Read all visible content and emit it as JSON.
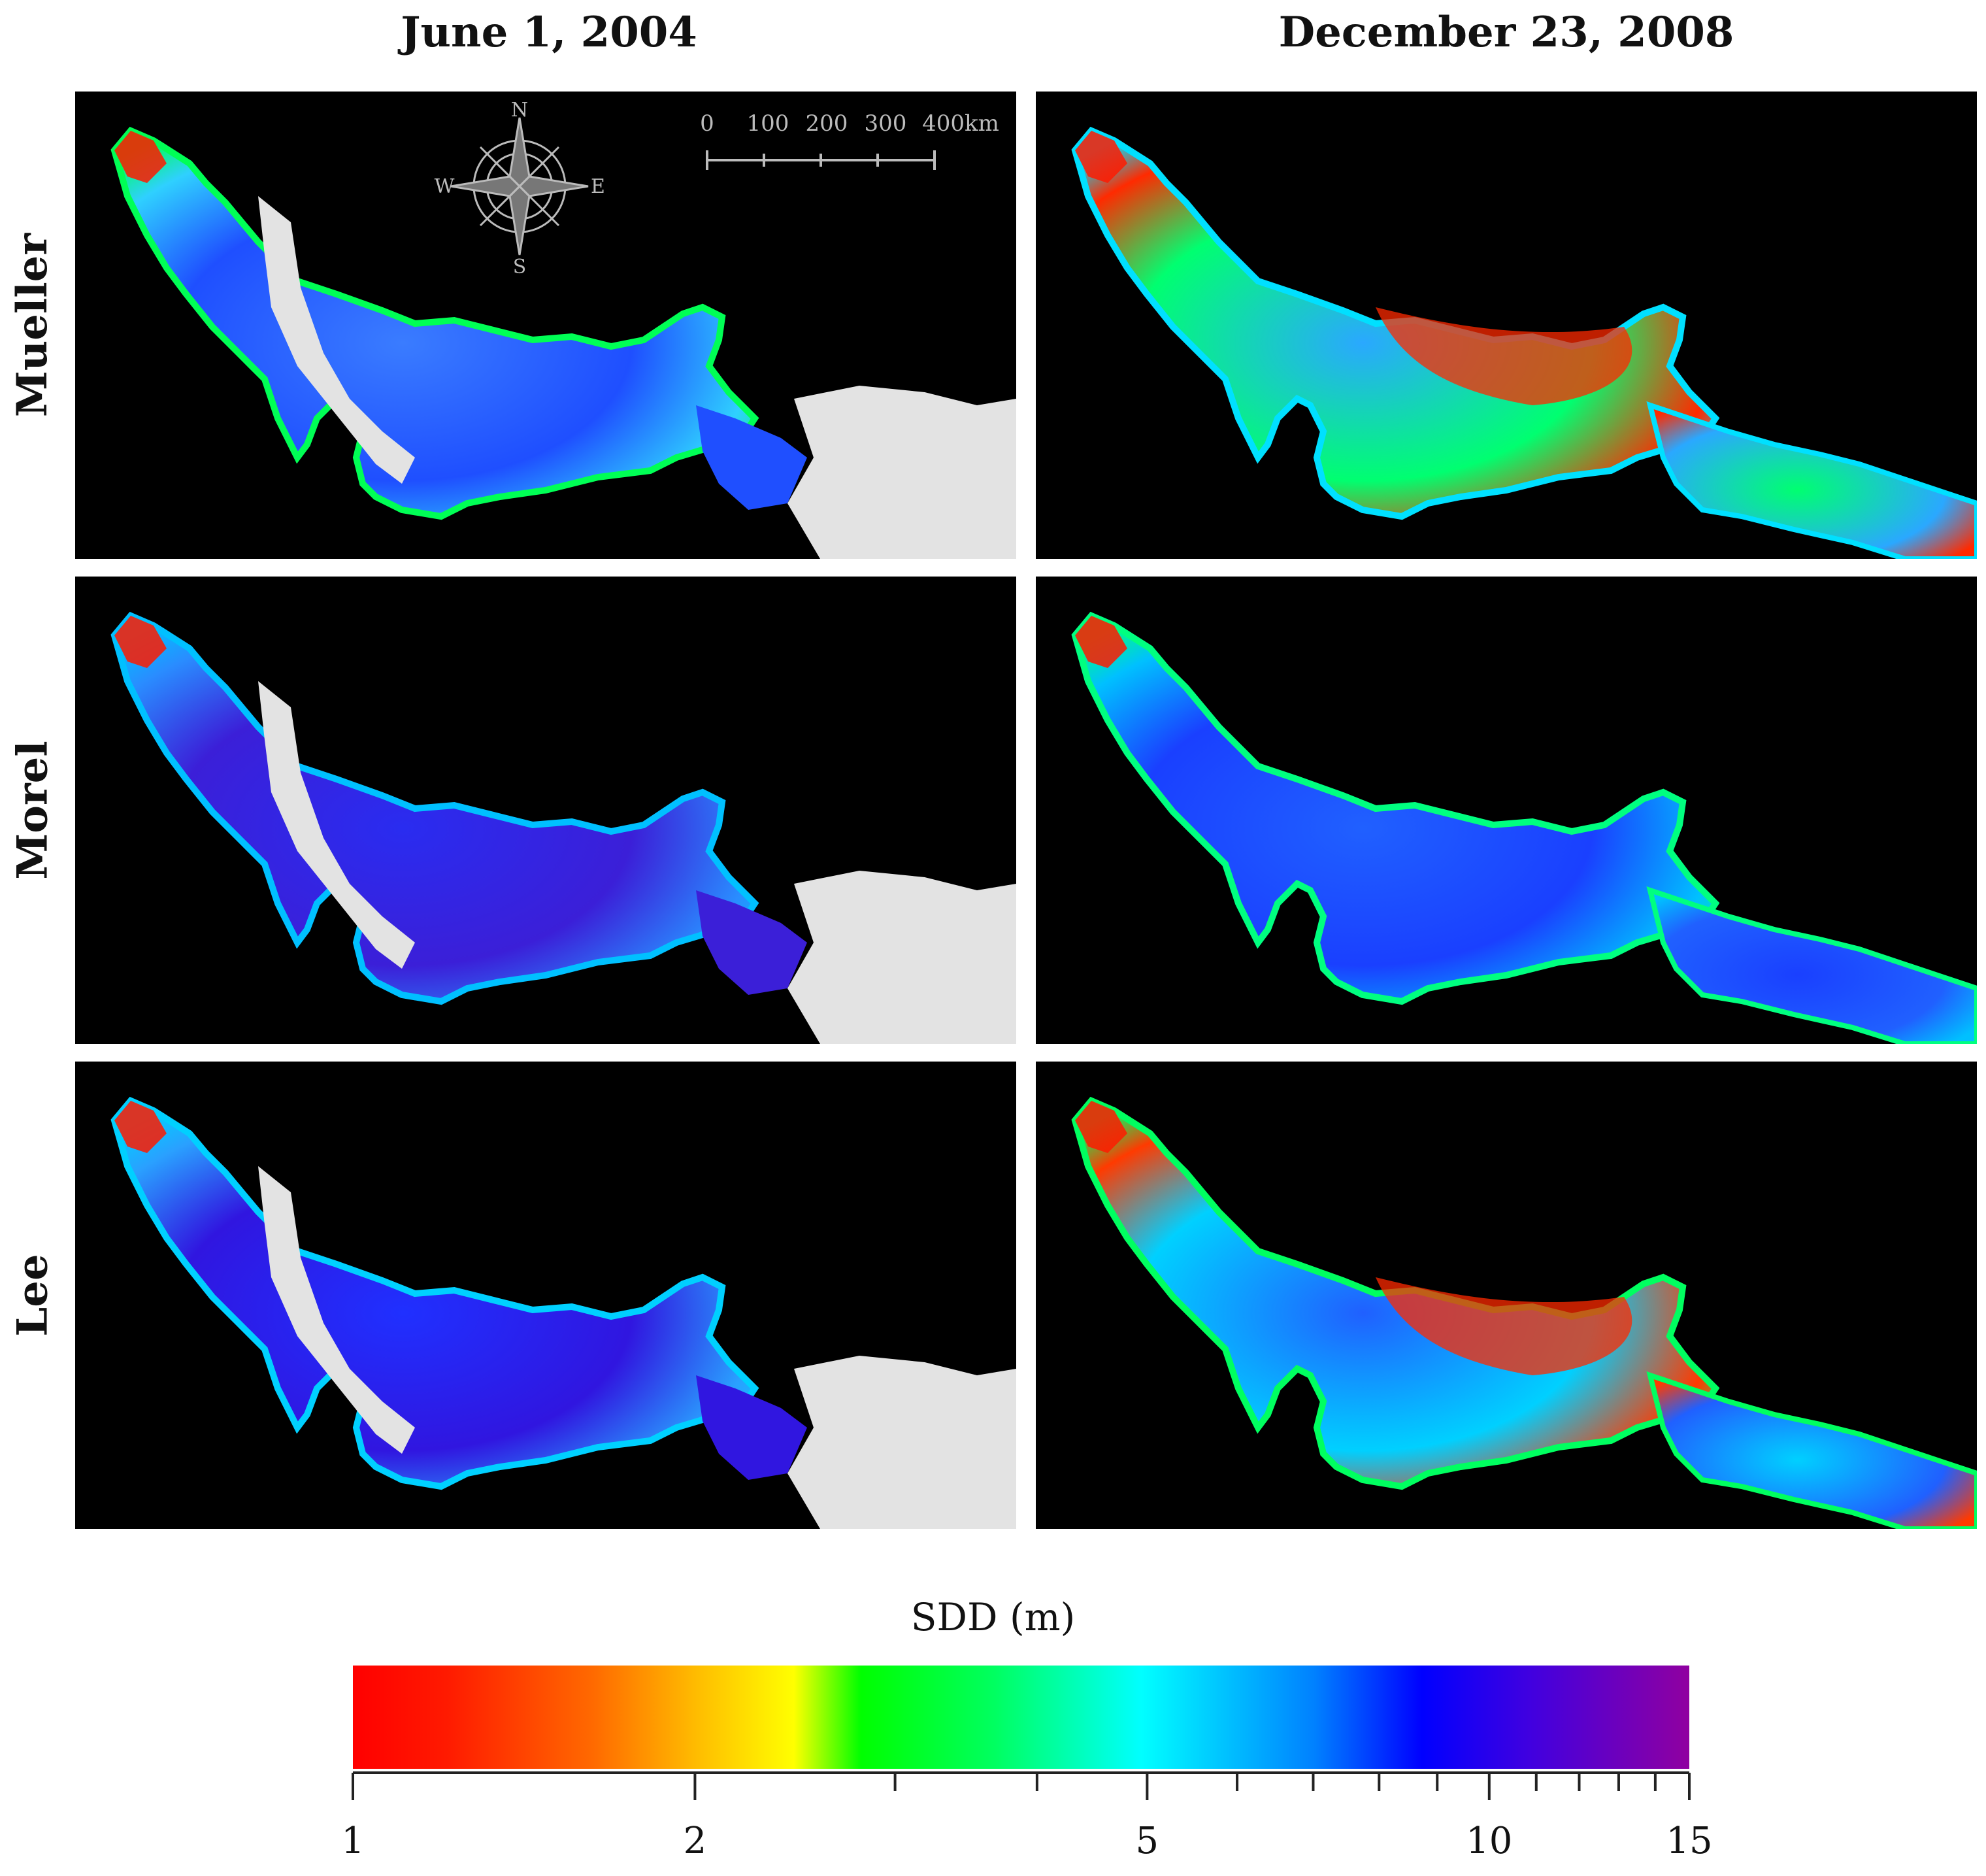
{
  "columns": [
    {
      "title": "June 1, 2004"
    },
    {
      "title": "December 23, 2008"
    }
  ],
  "rows": [
    {
      "label": "Mueller"
    },
    {
      "label": "Morel"
    },
    {
      "label": "Lee"
    }
  ],
  "map_overlay": {
    "compass": {
      "n": "N",
      "s": "S",
      "e": "E",
      "w": "W"
    },
    "scale_bar": {
      "labels": [
        "0",
        "100",
        "200",
        "300",
        "400km"
      ]
    }
  },
  "legend": {
    "title": "SDD (m)",
    "scale": "log",
    "range": [
      1,
      15
    ],
    "tick_labels": [
      "1",
      "2",
      "5",
      "10",
      "15"
    ],
    "minor_ticks": [
      3,
      4,
      6,
      7,
      8,
      9,
      11,
      12,
      13,
      14
    ],
    "colors": [
      "#ff0000",
      "#ffff00",
      "#00ff00",
      "#00ffff",
      "#0000ff",
      "#9000a0"
    ]
  },
  "colors": {
    "land": "#000000",
    "no_data": "#e3e3e3",
    "background": "#ffffff"
  }
}
